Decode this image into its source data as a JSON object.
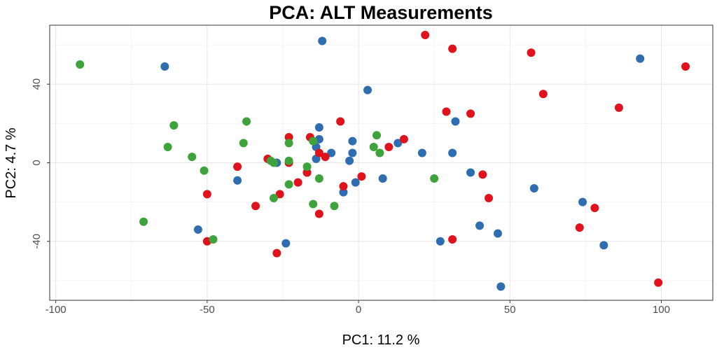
{
  "chart_data": {
    "type": "scatter",
    "title": "PCA: ALT Measurements",
    "xlabel": "PC1: 11.2 %",
    "ylabel": "PC2: 4.7 %",
    "xlim": [
      -102,
      117
    ],
    "ylim": [
      -70,
      70
    ],
    "x_ticks": [
      -100,
      -50,
      0,
      50,
      100
    ],
    "y_ticks": [
      -40,
      0,
      40
    ],
    "grid": true,
    "legend": "none",
    "series": [
      {
        "color": "#2E6DAF",
        "points": [
          [
            -12,
            62
          ],
          [
            -64,
            49
          ],
          [
            3,
            37
          ],
          [
            93,
            53
          ],
          [
            -13,
            18
          ],
          [
            32,
            21
          ],
          [
            -2,
            11
          ],
          [
            -13,
            12
          ],
          [
            -14,
            8
          ],
          [
            -9,
            5
          ],
          [
            -2,
            5
          ],
          [
            21,
            5
          ],
          [
            31,
            5
          ],
          [
            13,
            10
          ],
          [
            -27,
            0
          ],
          [
            -3,
            1
          ],
          [
            -14,
            2
          ],
          [
            -17,
            -5
          ],
          [
            -1,
            -10
          ],
          [
            -5,
            -15
          ],
          [
            8,
            -8
          ],
          [
            -40,
            -9
          ],
          [
            37,
            -5
          ],
          [
            58,
            -13
          ],
          [
            74,
            -20
          ],
          [
            40,
            -32
          ],
          [
            46,
            -36
          ],
          [
            -53,
            -34
          ],
          [
            -24,
            -41
          ],
          [
            27,
            -40
          ],
          [
            81,
            -42
          ],
          [
            47,
            -63
          ]
        ]
      },
      {
        "color": "#E0121B",
        "points": [
          [
            22,
            65
          ],
          [
            31,
            58
          ],
          [
            57,
            56
          ],
          [
            108,
            49
          ],
          [
            61,
            35
          ],
          [
            86,
            28
          ],
          [
            29,
            26
          ],
          [
            37,
            25
          ],
          [
            -6,
            21
          ],
          [
            15,
            12
          ],
          [
            10,
            8
          ],
          [
            -23,
            13
          ],
          [
            -16,
            13
          ],
          [
            -13,
            5
          ],
          [
            -11,
            3
          ],
          [
            -30,
            2
          ],
          [
            -23,
            0
          ],
          [
            -40,
            -2
          ],
          [
            -17,
            -5
          ],
          [
            1,
            -7
          ],
          [
            41,
            -6
          ],
          [
            -20,
            -10
          ],
          [
            -26,
            -16
          ],
          [
            -50,
            -16
          ],
          [
            -5,
            -12
          ],
          [
            43,
            -18
          ],
          [
            -34,
            -22
          ],
          [
            -13,
            -26
          ],
          [
            78,
            -23
          ],
          [
            73,
            -33
          ],
          [
            -50,
            -40
          ],
          [
            31,
            -39
          ],
          [
            -27,
            -46
          ],
          [
            99,
            -61
          ]
        ]
      },
      {
        "color": "#3EA33A",
        "points": [
          [
            -92,
            50
          ],
          [
            -61,
            19
          ],
          [
            -63,
            8
          ],
          [
            -37,
            21
          ],
          [
            -38,
            10
          ],
          [
            -55,
            3
          ],
          [
            -51,
            -4
          ],
          [
            -23,
            10
          ],
          [
            -15,
            11
          ],
          [
            6,
            14
          ],
          [
            5,
            8
          ],
          [
            7,
            5
          ],
          [
            -29,
            1
          ],
          [
            -28,
            0
          ],
          [
            -23,
            1
          ],
          [
            -17,
            -2
          ],
          [
            -13,
            -8
          ],
          [
            -23,
            -11
          ],
          [
            -28,
            -18
          ],
          [
            -15,
            -21
          ],
          [
            -8,
            -22
          ],
          [
            25,
            -8
          ],
          [
            -71,
            -30
          ],
          [
            -48,
            -39
          ]
        ]
      }
    ]
  }
}
